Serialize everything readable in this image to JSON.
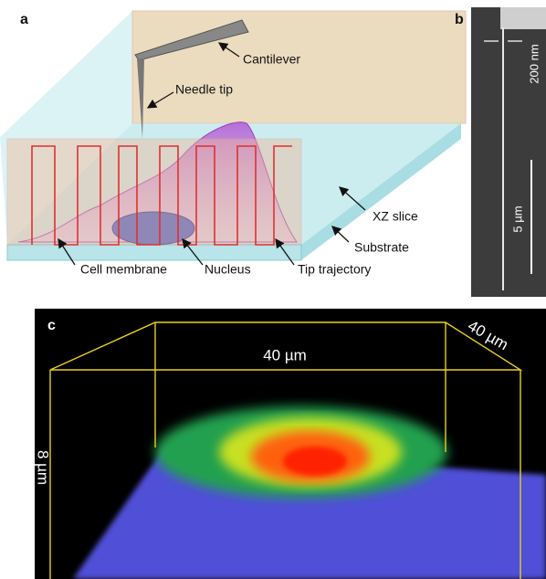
{
  "panel_a": {
    "label": "a",
    "annotations": {
      "cantilever": "Cantilever",
      "needle_tip": "Needle tip",
      "xz_slice": "XZ slice",
      "substrate": "Substrate",
      "cell_membrane": "Cell membrane",
      "nucleus": "Nucleus",
      "tip_trajectory": "Tip trajectory"
    }
  },
  "panel_b": {
    "label": "b",
    "scale_top": "200 nm",
    "scale_bar": "5 µm"
  },
  "panel_c": {
    "label": "c",
    "width_label": "40 µm",
    "depth_label": "40 µm",
    "height_label": "8 µm"
  }
}
